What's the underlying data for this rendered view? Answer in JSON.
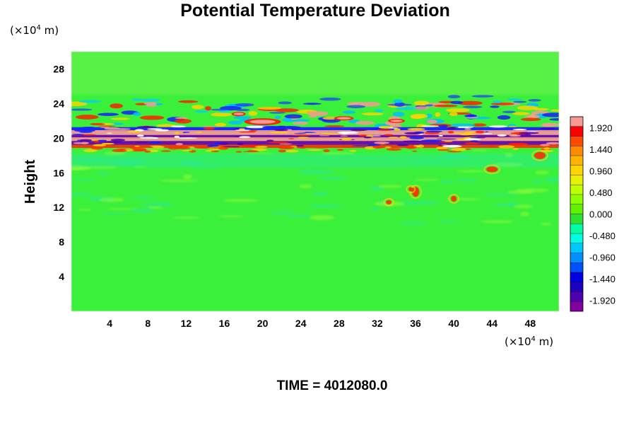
{
  "chart_data": {
    "type": "heatmap",
    "title": "Potential Temperature Deviation",
    "xlabel": "",
    "ylabel": "Height",
    "x_unit": {
      "prefix": "(×10",
      "exp": "4",
      "suffix": " m)"
    },
    "y_unit": {
      "prefix": "(×10",
      "exp": "4",
      "suffix": " m)"
    },
    "xlim": [
      0,
      51
    ],
    "ylim": [
      0,
      30
    ],
    "x_ticks": [
      4,
      8,
      12,
      16,
      20,
      24,
      28,
      32,
      36,
      40,
      44,
      48
    ],
    "x_tick_labels": [
      "4",
      "8",
      "12",
      "16",
      "20",
      "24",
      "28",
      "32",
      "36",
      "40",
      "44",
      "48"
    ],
    "y_ticks": [
      4,
      8,
      12,
      16,
      20,
      24,
      28
    ],
    "y_tick_labels": [
      "4",
      "8",
      "12",
      "16",
      "20",
      "24",
      "28"
    ],
    "colorbar": {
      "min": -2.16,
      "max": 2.16,
      "ticks": [
        1.92,
        1.44,
        0.96,
        0.48,
        0.0,
        -0.48,
        -0.96,
        -1.44,
        -1.92
      ],
      "tick_labels": [
        "1.920",
        "1.440",
        "0.960",
        "0.480",
        "0.000",
        "-0.480",
        "-0.960",
        "-1.440",
        "-1.920"
      ],
      "colors": [
        "#f49a94",
        "#ff0000",
        "#ff4a00",
        "#ff8c00",
        "#ffb400",
        "#ffd700",
        "#e6f000",
        "#c0ff00",
        "#90ff00",
        "#60f000",
        "#30e030",
        "#00ffa0",
        "#00ffe0",
        "#00c8ff",
        "#0090ff",
        "#0050ff",
        "#0000e0",
        "#2000c0",
        "#5000b0",
        "#8000a0"
      ]
    },
    "field": {
      "background": "#3bf03b",
      "bands": [
        {
          "y_center": 20.3,
          "thickness": 1.5,
          "value": "pink-white-purple oscillation"
        },
        {
          "y_center": 22.5,
          "thickness": 3.0,
          "value": "red/blue wave packets"
        },
        {
          "y_center": 17.5,
          "thickness": 3.0,
          "value": "weak cyan/yellow perturbations"
        },
        {
          "y_center": 11.5,
          "thickness": 2.0,
          "value": "weak perturbations"
        }
      ]
    }
  },
  "footer": {
    "time_label": "TIME = 4012080.0"
  }
}
